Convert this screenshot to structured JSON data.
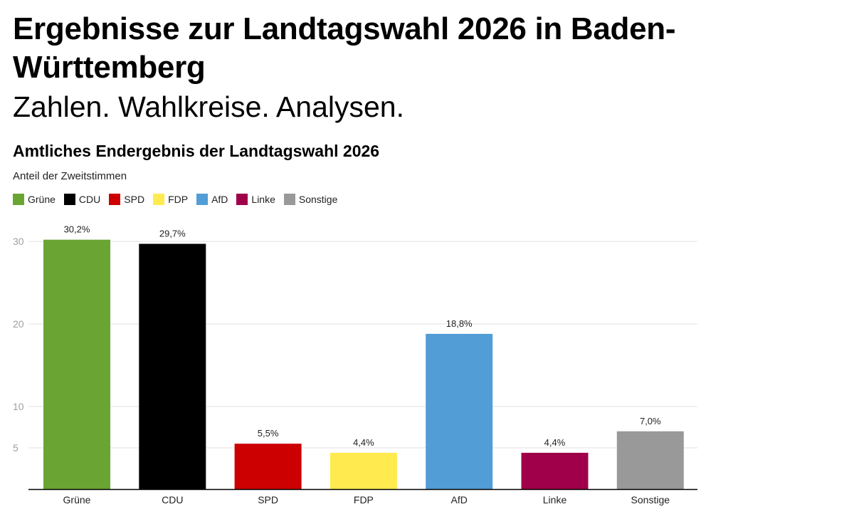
{
  "page": {
    "headline": "Ergebnisse zur Landtagswahl 2026 in Baden-Württemberg",
    "subline": "Zahlen. Wahlkreise. Analysen."
  },
  "chart_data": {
    "type": "bar",
    "title": "Amtliches Endergebnis der Landtagswahl 2026",
    "subtitle": "Anteil der Zweitstimmen",
    "categories": [
      "Grüne",
      "CDU",
      "SPD",
      "FDP",
      "AfD",
      "Linke",
      "Sonstige"
    ],
    "values": [
      30.2,
      29.7,
      5.5,
      4.4,
      18.8,
      4.4,
      7.0
    ],
    "value_labels": [
      "30,2%",
      "29,7%",
      "5,5%",
      "4,4%",
      "18,8%",
      "4,4%",
      "7,0%"
    ],
    "colors": [
      "#6aa534",
      "#000000",
      "#cc0000",
      "#ffeb4f",
      "#539dd6",
      "#a0004a",
      "#999999"
    ],
    "legend": [
      {
        "label": "Grüne",
        "color": "#6aa534"
      },
      {
        "label": "CDU",
        "color": "#000000"
      },
      {
        "label": "SPD",
        "color": "#cc0000"
      },
      {
        "label": "FDP",
        "color": "#ffeb4f"
      },
      {
        "label": "AfD",
        "color": "#539dd6"
      },
      {
        "label": "Linke",
        "color": "#a0004a"
      },
      {
        "label": "Sonstige",
        "color": "#999999"
      }
    ],
    "yticks": [
      5,
      10,
      20,
      30
    ],
    "ylim": [
      0,
      30
    ],
    "xlabel": "",
    "ylabel": "",
    "grid": true,
    "legend_position": "top-left"
  }
}
